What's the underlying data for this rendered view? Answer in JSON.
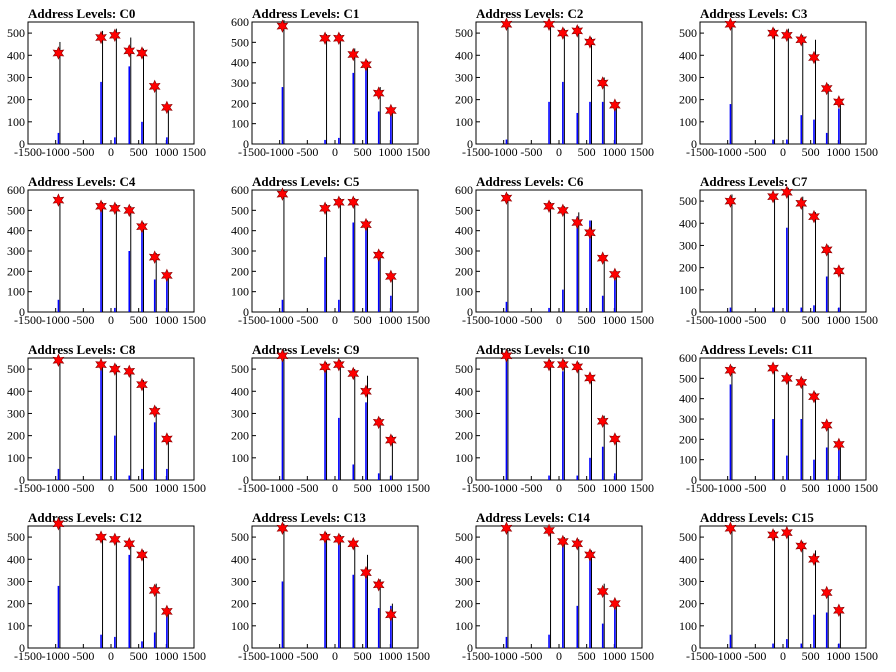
{
  "figure": {
    "title_prefix": "Address Levels: "
  },
  "colors": {
    "black_series": "#000000",
    "blue_series": "#0000ff",
    "star_marker": "#ff0000"
  },
  "chart_data": [
    {
      "type": "bar",
      "title": "Address Levels: C0",
      "xlim": [
        -1500,
        1500
      ],
      "ylim": [
        0,
        550
      ],
      "xticks": [
        -1500,
        -1000,
        -500,
        0,
        500,
        1000,
        1500
      ],
      "yticks": [
        0,
        100,
        200,
        300,
        400,
        500
      ],
      "x": [
        -950,
        -180,
        70,
        330,
        560,
        790,
        1010
      ],
      "black": [
        460,
        510,
        520,
        480,
        430,
        270,
        170
      ],
      "blue": [
        50,
        280,
        30,
        350,
        100,
        0,
        30
      ],
      "stars": [
        410,
        480,
        490,
        420,
        410,
        260,
        165
      ]
    },
    {
      "type": "bar",
      "title": "Address Levels: C1",
      "xlim": [
        -1500,
        1500
      ],
      "ylim": [
        0,
        600
      ],
      "xticks": [
        -1500,
        -1000,
        -500,
        0,
        500,
        1000,
        1500
      ],
      "yticks": [
        0,
        100,
        200,
        300,
        400,
        500,
        600
      ],
      "x": [
        -950,
        -180,
        70,
        330,
        560,
        790,
        1010
      ],
      "black": [
        610,
        540,
        540,
        470,
        410,
        280,
        180
      ],
      "blue": [
        280,
        20,
        30,
        350,
        370,
        160,
        160
      ],
      "stars": [
        580,
        520,
        520,
        440,
        390,
        250,
        165
      ]
    },
    {
      "type": "bar",
      "title": "Address Levels: C2",
      "xlim": [
        -1500,
        1500
      ],
      "ylim": [
        0,
        550
      ],
      "xticks": [
        -1500,
        -1000,
        -500,
        0,
        500,
        1000,
        1500
      ],
      "yticks": [
        0,
        100,
        200,
        300,
        400,
        500
      ],
      "x": [
        -950,
        -180,
        70,
        330,
        560,
        790,
        1010
      ],
      "black": [
        550,
        550,
        520,
        530,
        480,
        300,
        190
      ],
      "blue": [
        20,
        190,
        280,
        140,
        190,
        190,
        160
      ],
      "stars": [
        540,
        540,
        500,
        510,
        460,
        275,
        175
      ]
    },
    {
      "type": "bar",
      "title": "Address Levels: C3",
      "xlim": [
        -1500,
        1500
      ],
      "ylim": [
        0,
        550
      ],
      "xticks": [
        -1500,
        -1000,
        -500,
        0,
        500,
        1000,
        1500
      ],
      "yticks": [
        0,
        100,
        200,
        300,
        400,
        500
      ],
      "x": [
        -950,
        -180,
        70,
        330,
        560,
        790,
        1010
      ],
      "black": [
        550,
        520,
        520,
        490,
        470,
        270,
        200
      ],
      "blue": [
        180,
        20,
        20,
        130,
        110,
        50,
        160
      ],
      "stars": [
        540,
        500,
        490,
        470,
        390,
        250,
        190
      ]
    },
    {
      "type": "bar",
      "title": "Address Levels: C4",
      "xlim": [
        -1500,
        1500
      ],
      "ylim": [
        0,
        600
      ],
      "xticks": [
        -1500,
        -1000,
        -500,
        0,
        500,
        1000,
        1500
      ],
      "yticks": [
        0,
        100,
        200,
        300,
        400,
        500,
        600
      ],
      "x": [
        -950,
        -180,
        70,
        330,
        560,
        790,
        1010
      ],
      "black": [
        560,
        540,
        530,
        520,
        440,
        290,
        190
      ],
      "blue": [
        60,
        500,
        20,
        300,
        410,
        160,
        160
      ],
      "stars": [
        550,
        520,
        510,
        500,
        420,
        270,
        180
      ]
    },
    {
      "type": "bar",
      "title": "Address Levels: C5",
      "xlim": [
        -1500,
        1500
      ],
      "ylim": [
        0,
        600
      ],
      "xticks": [
        -1500,
        -1000,
        -500,
        0,
        500,
        1000,
        1500
      ],
      "yticks": [
        0,
        100,
        200,
        300,
        400,
        500,
        600
      ],
      "x": [
        -950,
        -180,
        70,
        330,
        560,
        790,
        1010
      ],
      "black": [
        600,
        530,
        560,
        560,
        450,
        300,
        190
      ],
      "blue": [
        60,
        270,
        60,
        440,
        420,
        270,
        80
      ],
      "stars": [
        580,
        510,
        540,
        540,
        430,
        280,
        175
      ]
    },
    {
      "type": "bar",
      "title": "Address Levels: C6",
      "xlim": [
        -1500,
        1500
      ],
      "ylim": [
        0,
        600
      ],
      "xticks": [
        -1500,
        -1000,
        -500,
        0,
        500,
        1000,
        1500
      ],
      "yticks": [
        0,
        100,
        200,
        300,
        400,
        500,
        600
      ],
      "x": [
        -950,
        -180,
        70,
        330,
        560,
        790,
        1010
      ],
      "black": [
        580,
        540,
        520,
        490,
        450,
        280,
        200
      ],
      "blue": [
        50,
        20,
        110,
        470,
        450,
        80,
        160
      ],
      "stars": [
        560,
        520,
        500,
        440,
        390,
        265,
        185
      ]
    },
    {
      "type": "bar",
      "title": "Address Levels: C7",
      "xlim": [
        -1500,
        1500
      ],
      "ylim": [
        0,
        550
      ],
      "xticks": [
        -1500,
        -1000,
        -500,
        0,
        500,
        1000,
        1500
      ],
      "yticks": [
        0,
        100,
        200,
        300,
        400,
        500
      ],
      "x": [
        -950,
        -180,
        70,
        330,
        560,
        790,
        1010
      ],
      "black": [
        530,
        530,
        560,
        520,
        450,
        300,
        200
      ],
      "blue": [
        20,
        20,
        380,
        20,
        30,
        160,
        20
      ],
      "stars": [
        500,
        520,
        540,
        490,
        430,
        280,
        185
      ]
    },
    {
      "type": "bar",
      "title": "Address Levels: C8",
      "xlim": [
        -1500,
        1500
      ],
      "ylim": [
        0,
        550
      ],
      "xticks": [
        -1500,
        -1000,
        -500,
        0,
        500,
        1000,
        1500
      ],
      "yticks": [
        0,
        100,
        200,
        300,
        400,
        500
      ],
      "x": [
        -950,
        -180,
        70,
        330,
        560,
        790,
        1010
      ],
      "black": [
        550,
        530,
        520,
        500,
        450,
        330,
        200
      ],
      "blue": [
        50,
        500,
        200,
        20,
        50,
        260,
        50
      ],
      "stars": [
        540,
        520,
        500,
        490,
        430,
        310,
        185
      ]
    },
    {
      "type": "bar",
      "title": "Address Levels: C9",
      "xlim": [
        -1500,
        1500
      ],
      "ylim": [
        0,
        550
      ],
      "xticks": [
        -1500,
        -1000,
        -500,
        0,
        500,
        1000,
        1500
      ],
      "yticks": [
        0,
        100,
        200,
        300,
        400,
        500
      ],
      "x": [
        -950,
        -180,
        70,
        330,
        560,
        790,
        1010
      ],
      "black": [
        580,
        530,
        540,
        500,
        470,
        280,
        200
      ],
      "blue": [
        540,
        500,
        280,
        70,
        350,
        30,
        20
      ],
      "stars": [
        560,
        510,
        520,
        480,
        400,
        260,
        180
      ]
    },
    {
      "type": "bar",
      "title": "Address Levels: C10",
      "xlim": [
        -1500,
        1500
      ],
      "ylim": [
        0,
        550
      ],
      "xticks": [
        -1500,
        -1000,
        -500,
        0,
        500,
        1000,
        1500
      ],
      "yticks": [
        0,
        100,
        200,
        300,
        400,
        500
      ],
      "x": [
        -950,
        -180,
        70,
        330,
        560,
        790,
        1010
      ],
      "black": [
        580,
        540,
        540,
        530,
        470,
        290,
        200
      ],
      "blue": [
        560,
        20,
        490,
        20,
        100,
        150,
        30
      ],
      "stars": [
        560,
        520,
        520,
        510,
        460,
        265,
        185
      ]
    },
    {
      "type": "bar",
      "title": "Address Levels: C11",
      "xlim": [
        -1500,
        1500
      ],
      "ylim": [
        0,
        600
      ],
      "xticks": [
        -1500,
        -1000,
        -500,
        0,
        500,
        1000,
        1500
      ],
      "yticks": [
        0,
        100,
        200,
        300,
        400,
        500,
        600
      ],
      "x": [
        -950,
        -180,
        70,
        330,
        560,
        790,
        1010
      ],
      "black": [
        560,
        560,
        520,
        500,
        430,
        280,
        180
      ],
      "blue": [
        470,
        300,
        120,
        300,
        100,
        160,
        160
      ],
      "stars": [
        540,
        550,
        500,
        480,
        410,
        270,
        175
      ]
    },
    {
      "type": "bar",
      "title": "Address Levels: C12",
      "xlim": [
        -1500,
        1500
      ],
      "ylim": [
        0,
        550
      ],
      "xticks": [
        -1500,
        -1000,
        -500,
        0,
        500,
        1000,
        1500
      ],
      "yticks": [
        0,
        100,
        200,
        300,
        400,
        500
      ],
      "x": [
        -950,
        -180,
        70,
        330,
        560,
        790,
        1010
      ],
      "black": [
        580,
        510,
        500,
        480,
        440,
        290,
        180
      ],
      "blue": [
        280,
        60,
        50,
        420,
        30,
        70,
        160
      ],
      "stars": [
        560,
        500,
        490,
        470,
        420,
        260,
        165
      ]
    },
    {
      "type": "bar",
      "title": "Address Levels: C13",
      "xlim": [
        -1500,
        1500
      ],
      "ylim": [
        0,
        550
      ],
      "xticks": [
        -1500,
        -1000,
        -500,
        0,
        500,
        1000,
        1500
      ],
      "yticks": [
        0,
        100,
        200,
        300,
        400,
        500
      ],
      "x": [
        -950,
        -180,
        70,
        330,
        560,
        790,
        1010
      ],
      "black": [
        560,
        520,
        510,
        480,
        420,
        310,
        200
      ],
      "blue": [
        300,
        490,
        490,
        330,
        330,
        180,
        190
      ],
      "stars": [
        540,
        500,
        490,
        470,
        340,
        285,
        150
      ]
    },
    {
      "type": "bar",
      "title": "Address Levels: C14",
      "xlim": [
        -1500,
        1500
      ],
      "ylim": [
        0,
        550
      ],
      "xticks": [
        -1500,
        -1000,
        -500,
        0,
        500,
        1000,
        1500
      ],
      "yticks": [
        0,
        100,
        200,
        300,
        400,
        500
      ],
      "x": [
        -950,
        -180,
        70,
        330,
        560,
        790,
        1010
      ],
      "black": [
        550,
        540,
        500,
        490,
        440,
        290,
        210
      ],
      "blue": [
        50,
        60,
        480,
        190,
        410,
        110,
        190
      ],
      "stars": [
        540,
        530,
        480,
        470,
        420,
        255,
        200
      ]
    },
    {
      "type": "bar",
      "title": "Address Levels: C15",
      "xlim": [
        -1500,
        1500
      ],
      "ylim": [
        0,
        550
      ],
      "xticks": [
        -1500,
        -1000,
        -500,
        0,
        500,
        1000,
        1500
      ],
      "yticks": [
        0,
        100,
        200,
        300,
        400,
        500
      ],
      "x": [
        -950,
        -180,
        70,
        330,
        560,
        790,
        1010
      ],
      "black": [
        550,
        530,
        530,
        480,
        440,
        260,
        180
      ],
      "blue": [
        60,
        20,
        40,
        20,
        150,
        160,
        20
      ],
      "stars": [
        540,
        510,
        520,
        460,
        400,
        250,
        170
      ]
    }
  ]
}
